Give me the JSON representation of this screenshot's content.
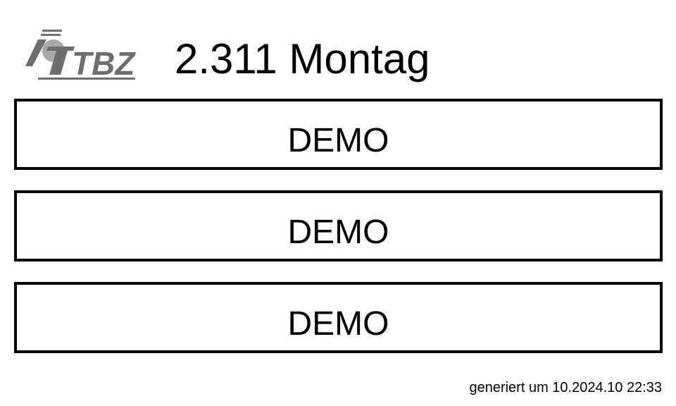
{
  "logo": {
    "text": "TBZ",
    "icon": "tbz-logo"
  },
  "header": {
    "room_title": "2.311 Montag"
  },
  "slots": [
    {
      "label": "DEMO"
    },
    {
      "label": "DEMO"
    },
    {
      "label": "DEMO"
    }
  ],
  "footer": {
    "generated_text": "generiert um 10.2024.10 22:33"
  },
  "colors": {
    "text": "#000000",
    "background": "#ffffff",
    "border": "#000000",
    "logo_gray": "#6e6e6e",
    "logo_light_gray": "#a8a8a8"
  }
}
